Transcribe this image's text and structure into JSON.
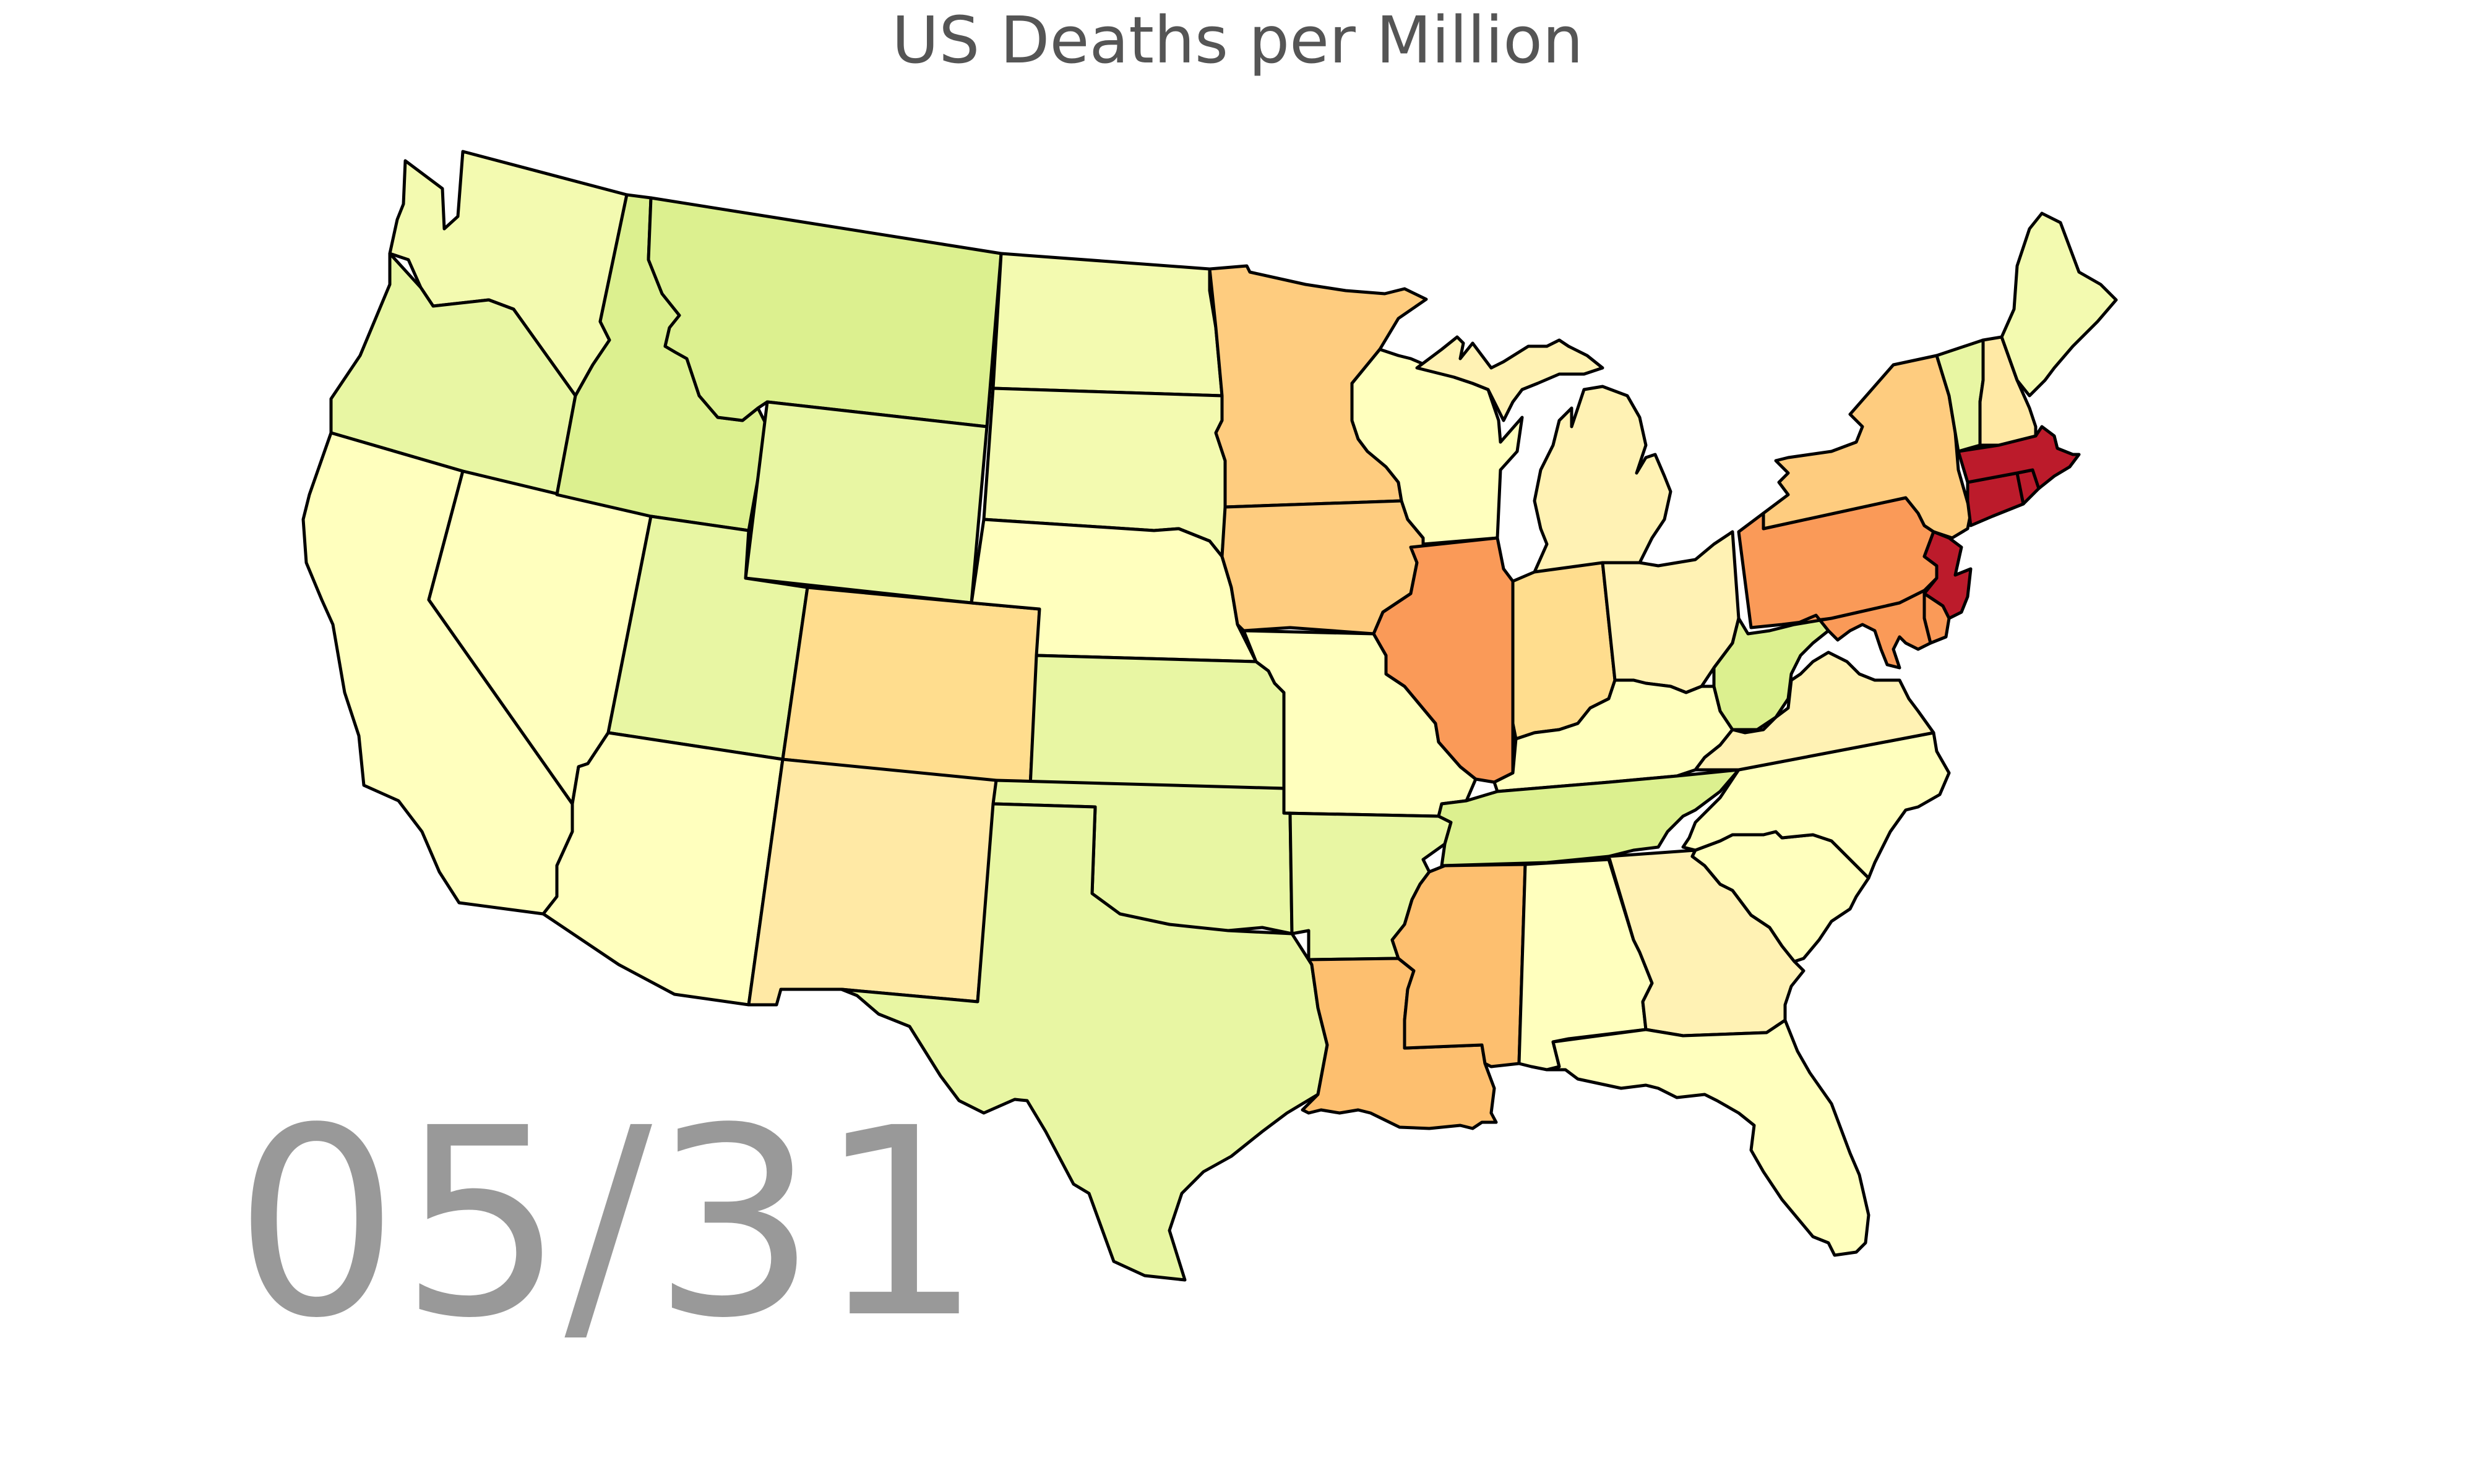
{
  "title": "US Deaths per Million",
  "date": "05/31",
  "colors": {
    "stroke": "#000000",
    "title": "#555555",
    "date": "#999999"
  },
  "color_scale": {
    "very_low": "#ffffbe",
    "low": "#f3fab0",
    "low_green": "#e8f6a3",
    "green": "#dcf08f",
    "pale_yellow": "#fff2b4",
    "light_orange": "#ffe9a5",
    "orange_light": "#ffdd8e",
    "orange": "#fecc7f",
    "orange_mid": "#fdbf6f",
    "orange_dark": "#fa9a58",
    "red": "#bc1b2b"
  },
  "states": {
    "WA": {
      "level": "low"
    },
    "OR": {
      "level": "low_green"
    },
    "CA": {
      "level": "very_low"
    },
    "NV": {
      "level": "very_low"
    },
    "ID": {
      "level": "green"
    },
    "MT": {
      "level": "green"
    },
    "WY": {
      "level": "low_green"
    },
    "UT": {
      "level": "low_green"
    },
    "AZ": {
      "level": "very_low"
    },
    "CO": {
      "level": "orange_light"
    },
    "NM": {
      "level": "light_orange"
    },
    "ND": {
      "level": "low"
    },
    "SD": {
      "level": "low"
    },
    "NE": {
      "level": "very_low"
    },
    "KS": {
      "level": "low_green"
    },
    "OK": {
      "level": "low_green"
    },
    "TX": {
      "level": "low_green"
    },
    "MN": {
      "level": "orange"
    },
    "IA": {
      "level": "orange"
    },
    "MO": {
      "level": "very_low"
    },
    "AR": {
      "level": "low_green"
    },
    "LA": {
      "level": "orange_mid"
    },
    "WI": {
      "level": "very_low"
    },
    "IL": {
      "level": "orange_dark"
    },
    "MI": {
      "level": "pale_yellow"
    },
    "IN": {
      "level": "orange_light"
    },
    "OH": {
      "level": "pale_yellow"
    },
    "KY": {
      "level": "very_low"
    },
    "TN": {
      "level": "green"
    },
    "MS": {
      "level": "orange_mid"
    },
    "AL": {
      "level": "very_low"
    },
    "GA": {
      "level": "pale_yellow"
    },
    "FL": {
      "level": "very_low"
    },
    "SC": {
      "level": "very_low"
    },
    "NC": {
      "level": "very_low"
    },
    "VA": {
      "level": "pale_yellow"
    },
    "WV": {
      "level": "green"
    },
    "PA": {
      "level": "orange_dark"
    },
    "NY": {
      "level": "orange"
    },
    "VT": {
      "level": "low_green"
    },
    "NH": {
      "level": "light_orange"
    },
    "ME": {
      "level": "low"
    },
    "MA": {
      "level": "red"
    },
    "CT": {
      "level": "red"
    },
    "RI": {
      "level": "red"
    },
    "NJ": {
      "level": "red"
    },
    "DE": {
      "level": "orange_dark"
    },
    "MD": {
      "level": "orange_dark"
    }
  }
}
